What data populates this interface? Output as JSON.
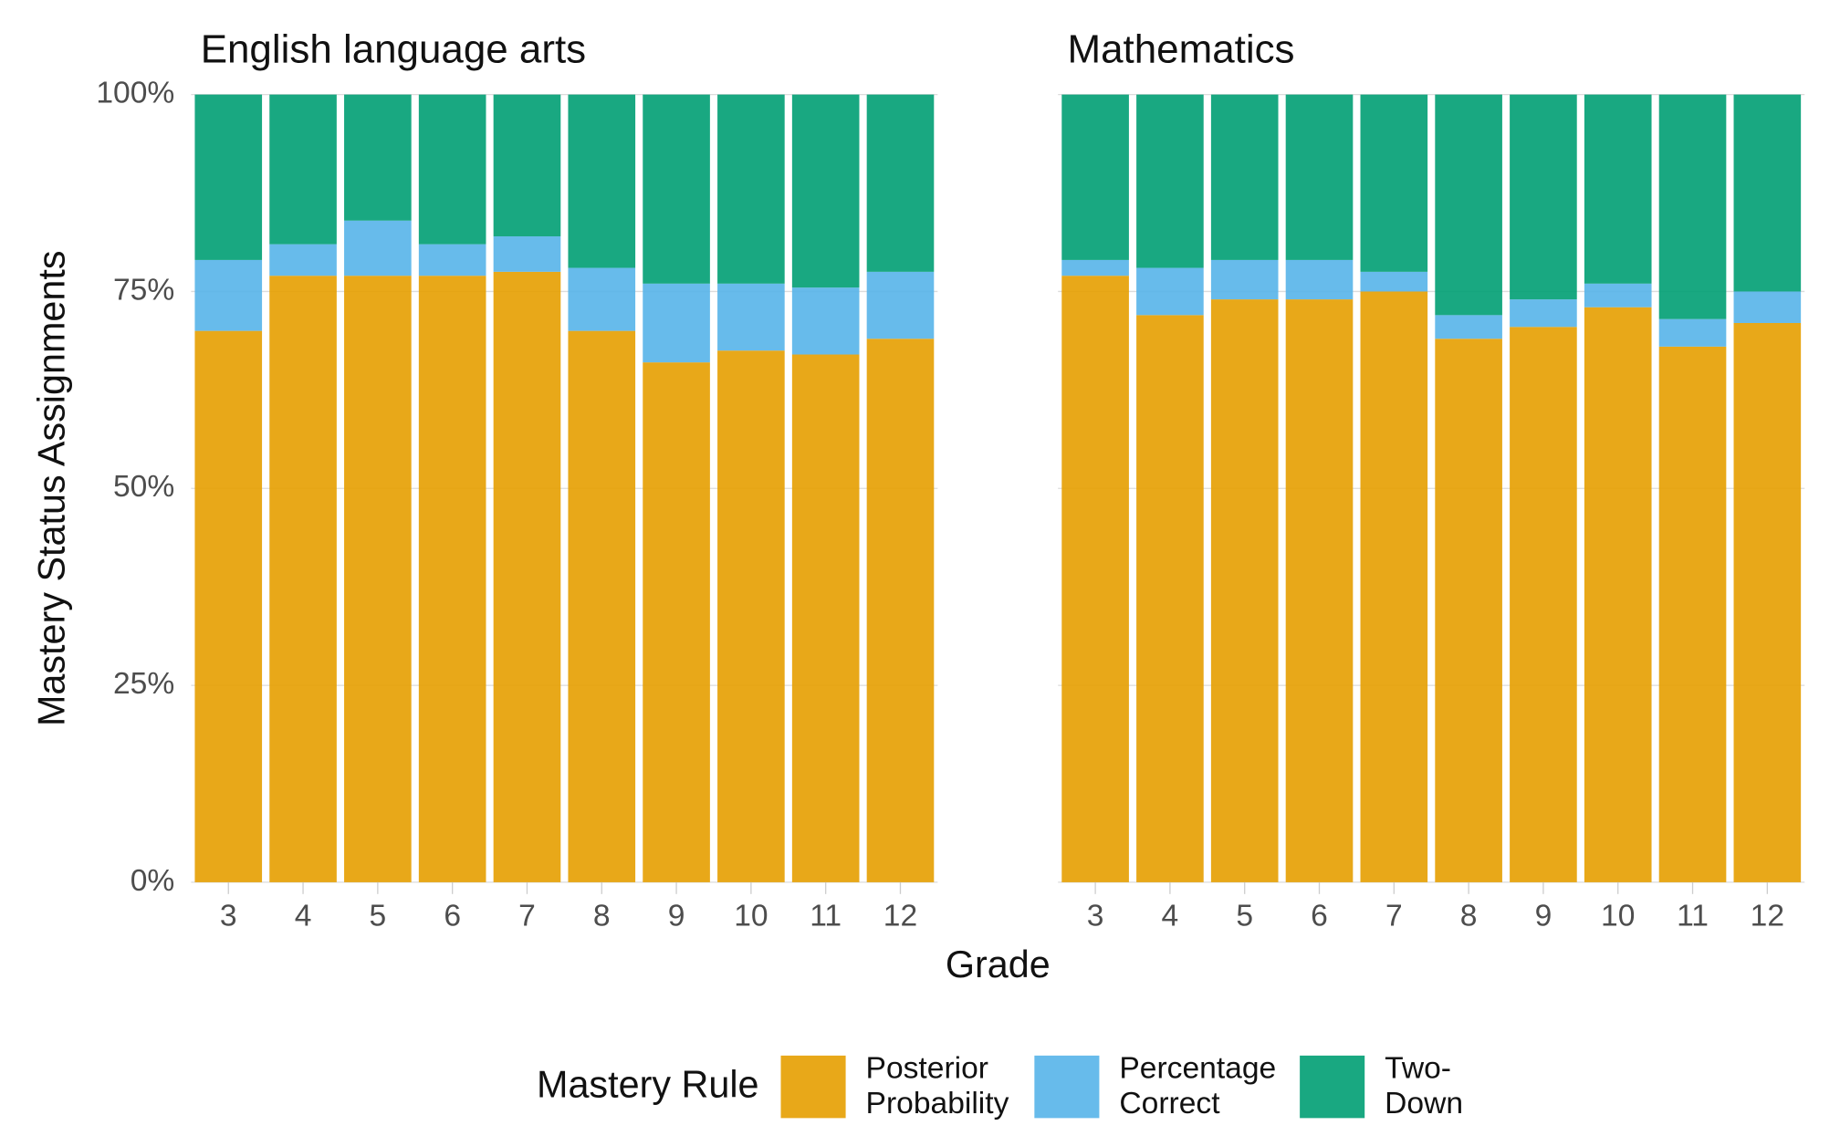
{
  "chart_data": {
    "type": "bar",
    "stacked": true,
    "ylabel": "Mastery Status Assignments",
    "xlabel": "Grade",
    "legend_title": "Mastery Rule",
    "legend": "bottom",
    "ylim": [
      0,
      100
    ],
    "yticks": [
      {
        "value": 0,
        "label": "0%"
      },
      {
        "value": 25,
        "label": "25%"
      },
      {
        "value": 50,
        "label": "50%"
      },
      {
        "value": 75,
        "label": "75%"
      },
      {
        "value": 100,
        "label": "100%"
      }
    ],
    "grid": true,
    "series": [
      {
        "name": "Posterior Probability",
        "color": "#E69F00"
      },
      {
        "name": "Percentage Correct",
        "color": "#56B4E9"
      },
      {
        "name": "Two-Down",
        "color": "#009E73"
      }
    ],
    "panels": [
      {
        "title": "English language arts",
        "categories": [
          "3",
          "4",
          "5",
          "6",
          "7",
          "8",
          "9",
          "10",
          "11",
          "12"
        ],
        "values": [
          [
            70,
            77,
            77,
            77,
            77.5,
            70,
            66,
            67.5,
            67,
            69
          ],
          [
            9,
            4,
            7,
            4,
            4.5,
            8,
            10,
            8.5,
            8.5,
            8.5
          ],
          [
            21,
            19,
            16,
            19,
            18,
            22,
            24,
            24,
            24.5,
            22.5
          ]
        ]
      },
      {
        "title": "Mathematics",
        "categories": [
          "3",
          "4",
          "5",
          "6",
          "7",
          "8",
          "9",
          "10",
          "11",
          "12"
        ],
        "values": [
          [
            77,
            72,
            74,
            74,
            75,
            69,
            70.5,
            73,
            68,
            71
          ],
          [
            2,
            6,
            5,
            5,
            2.5,
            3,
            3.5,
            3,
            3.5,
            4
          ],
          [
            21,
            22,
            21,
            21,
            22.5,
            28,
            26,
            24,
            28.5,
            25
          ]
        ]
      }
    ]
  }
}
